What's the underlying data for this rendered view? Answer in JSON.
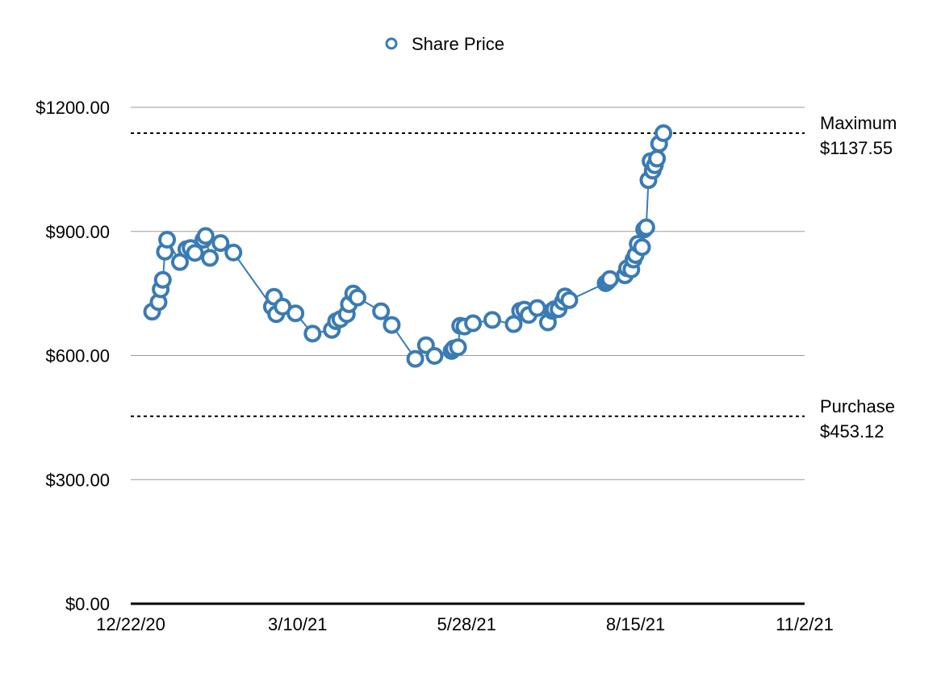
{
  "chart_data": {
    "type": "line",
    "legend": {
      "position": "top-center",
      "entries": [
        "Share Price"
      ]
    },
    "series": [
      {
        "name": "Share Price",
        "color": "#3a7bb3",
        "marker": "open-circle",
        "points": [
          [
            "2021-01-01",
            706
          ],
          [
            "2021-01-04",
            729
          ],
          [
            "2021-01-05",
            760
          ],
          [
            "2021-01-06",
            783
          ],
          [
            "2021-01-07",
            851
          ],
          [
            "2021-01-08",
            880
          ],
          [
            "2021-01-14",
            826
          ],
          [
            "2021-01-17",
            857
          ],
          [
            "2021-01-19",
            860
          ],
          [
            "2021-01-21",
            848
          ],
          [
            "2021-01-25",
            880
          ],
          [
            "2021-01-26",
            889
          ],
          [
            "2021-01-28",
            836
          ],
          [
            "2021-02-02",
            872
          ],
          [
            "2021-02-08",
            849
          ],
          [
            "2021-02-26",
            718
          ],
          [
            "2021-02-27",
            742
          ],
          [
            "2021-02-28",
            700
          ],
          [
            "2021-03-03",
            718
          ],
          [
            "2021-03-09",
            702
          ],
          [
            "2021-03-17",
            653
          ],
          [
            "2021-03-26",
            662
          ],
          [
            "2021-03-28",
            683
          ],
          [
            "2021-03-30",
            688
          ],
          [
            "2021-04-02",
            700
          ],
          [
            "2021-04-03",
            724
          ],
          [
            "2021-04-05",
            750
          ],
          [
            "2021-04-07",
            740
          ],
          [
            "2021-04-18",
            707
          ],
          [
            "2021-04-23",
            674
          ],
          [
            "2021-05-04",
            592
          ],
          [
            "2021-05-09",
            625
          ],
          [
            "2021-05-13",
            599
          ],
          [
            "2021-05-21",
            611
          ],
          [
            "2021-05-22",
            617
          ],
          [
            "2021-05-24",
            620
          ],
          [
            "2021-05-25",
            672
          ],
          [
            "2021-05-27",
            670
          ],
          [
            "2021-05-31",
            678
          ],
          [
            "2021-06-09",
            686
          ],
          [
            "2021-06-19",
            676
          ],
          [
            "2021-06-22",
            708
          ],
          [
            "2021-06-24",
            711
          ],
          [
            "2021-06-26",
            698
          ],
          [
            "2021-06-30",
            715
          ],
          [
            "2021-07-05",
            680
          ],
          [
            "2021-07-07",
            708
          ],
          [
            "2021-07-08",
            712
          ],
          [
            "2021-07-10",
            712
          ],
          [
            "2021-07-12",
            730
          ],
          [
            "2021-07-13",
            743
          ],
          [
            "2021-07-15",
            734
          ],
          [
            "2021-08-01",
            775
          ],
          [
            "2021-08-02",
            779
          ],
          [
            "2021-08-03",
            785
          ],
          [
            "2021-08-10",
            794
          ],
          [
            "2021-08-11",
            811
          ],
          [
            "2021-08-13",
            808
          ],
          [
            "2021-08-14",
            832
          ],
          [
            "2021-08-15",
            843
          ],
          [
            "2021-08-16",
            870
          ],
          [
            "2021-08-18",
            862
          ],
          [
            "2021-08-19",
            905
          ],
          [
            "2021-08-20",
            910
          ],
          [
            "2021-08-21",
            1024
          ],
          [
            "2021-08-22",
            1070
          ],
          [
            "2021-08-23",
            1047
          ],
          [
            "2021-08-24",
            1060
          ],
          [
            "2021-08-25",
            1076
          ],
          [
            "2021-08-26",
            1112
          ],
          [
            "2021-08-28",
            1137.55
          ]
        ]
      }
    ],
    "reference_lines": [
      {
        "name": "Maximum",
        "label": "Maximum",
        "value": 1137.55,
        "value_label": "$1137.55",
        "style": "dashed"
      },
      {
        "name": "Purchase",
        "label": "Purchase",
        "value": 453.12,
        "value_label": "$453.12",
        "style": "dashed"
      }
    ],
    "x_axis": {
      "range": [
        "2020-12-22",
        "2021-11-02"
      ],
      "ticks": [
        {
          "date": "2020-12-22",
          "label": "12/22/20"
        },
        {
          "date": "2021-03-10",
          "label": "3/10/21"
        },
        {
          "date": "2021-05-28",
          "label": "5/28/21"
        },
        {
          "date": "2021-08-15",
          "label": "8/15/21"
        },
        {
          "date": "2021-11-02",
          "label": "11/2/21"
        }
      ]
    },
    "y_axis": {
      "range": [
        0,
        1200
      ],
      "ticks": [
        {
          "value": 0,
          "label": "$0.00"
        },
        {
          "value": 300,
          "label": "$300.00"
        },
        {
          "value": 600,
          "label": "$600.00"
        },
        {
          "value": 900,
          "label": "$900.00"
        },
        {
          "value": 1200,
          "label": "$1200.00"
        }
      ]
    },
    "grid": {
      "horizontal": true,
      "vertical": false
    }
  }
}
